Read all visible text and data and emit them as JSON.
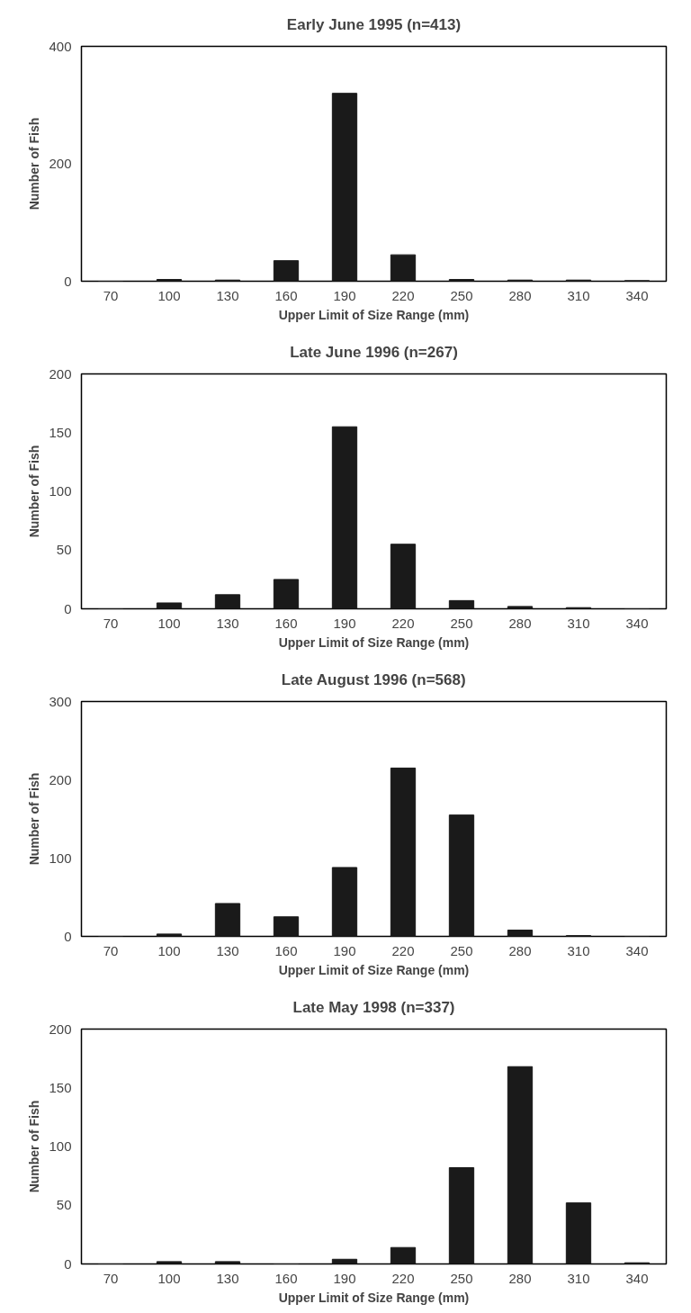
{
  "chart_data": [
    {
      "type": "bar",
      "title": "Early June 1995 (n=413)",
      "xlabel": "Upper Limit of Size Range (mm)",
      "ylabel": "Number of Fish",
      "categories": [
        "70",
        "100",
        "130",
        "160",
        "190",
        "220",
        "250",
        "280",
        "310",
        "340"
      ],
      "values": [
        0,
        3,
        2,
        35,
        320,
        45,
        3,
        2,
        2,
        1
      ],
      "color": "#1a1a1a",
      "ylim": [
        0,
        400
      ],
      "yticks": [
        0,
        200,
        400
      ],
      "grid": false
    },
    {
      "type": "bar",
      "title": "Late June 1996 (n=267)",
      "xlabel": "Upper Limit of Size Range (mm)",
      "ylabel": "Number of Fish",
      "categories": [
        "70",
        "100",
        "130",
        "160",
        "190",
        "220",
        "250",
        "280",
        "310",
        "340"
      ],
      "values": [
        0,
        5,
        12,
        25,
        155,
        55,
        7,
        2,
        1,
        0
      ],
      "color": "#1a1a1a",
      "ylim": [
        0,
        200
      ],
      "yticks": [
        0,
        50,
        100,
        150,
        200
      ],
      "grid": false
    },
    {
      "type": "bar",
      "title": "Late August 1996 (n=568)",
      "xlabel": "Upper Limit of Size Range (mm)",
      "ylabel": "Number of Fish",
      "categories": [
        "70",
        "100",
        "130",
        "160",
        "190",
        "220",
        "250",
        "280",
        "310",
        "340"
      ],
      "values": [
        0,
        3,
        42,
        25,
        88,
        215,
        155,
        8,
        1,
        0
      ],
      "color": "#1a1a1a",
      "ylim": [
        0,
        300
      ],
      "yticks": [
        0,
        100,
        200,
        300
      ],
      "grid": false
    },
    {
      "type": "bar",
      "title": "Late May 1998 (n=337)",
      "xlabel": "Upper Limit of Size Range (mm)",
      "ylabel": "Number of Fish",
      "categories": [
        "70",
        "100",
        "130",
        "160",
        "190",
        "220",
        "250",
        "280",
        "310",
        "340"
      ],
      "values": [
        0,
        2,
        2,
        0,
        4,
        14,
        82,
        168,
        52,
        1
      ],
      "color": "#1a1a1a",
      "ylim": [
        0,
        200
      ],
      "yticks": [
        0,
        50,
        100,
        150,
        200
      ],
      "grid": false
    }
  ]
}
